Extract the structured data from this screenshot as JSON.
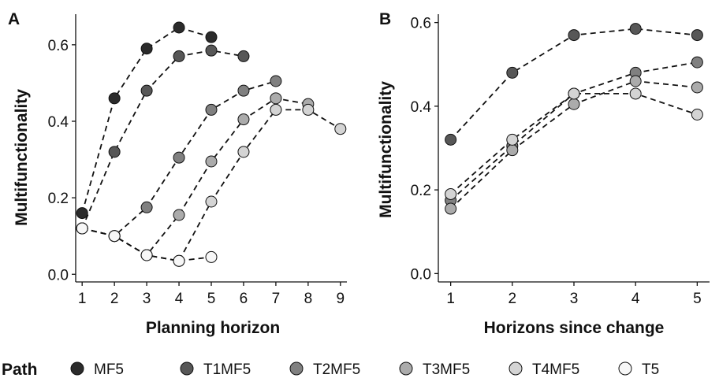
{
  "legend": {
    "title": "Path",
    "position": "bottom"
  },
  "series_colors": {
    "MF5": "#2b2b2b",
    "T1MF5": "#575757",
    "T2MF5": "#808080",
    "T3MF5": "#ababab",
    "T4MF5": "#d4d4d4",
    "T5": "#f7f7f7"
  },
  "chart_data": [
    {
      "panel": "A",
      "type": "line",
      "xlabel": "Planning horizon",
      "ylabel": "Multifunctionality",
      "xlim": [
        0.8,
        9.2
      ],
      "ylim": [
        -0.02,
        0.68
      ],
      "xticks": [
        1,
        2,
        3,
        4,
        5,
        6,
        7,
        8,
        9
      ],
      "yticks": [
        0.0,
        0.2,
        0.4,
        0.6
      ],
      "ytick_labels": [
        "0.0",
        "0.2",
        "0.4",
        "0.6"
      ],
      "grid": false,
      "series": [
        {
          "name": "MF5",
          "x": [
            1,
            2,
            3,
            4,
            5
          ],
          "y": [
            0.16,
            0.46,
            0.59,
            0.645,
            0.62
          ]
        },
        {
          "name": "T1MF5",
          "x": [
            1,
            2,
            3,
            4,
            5,
            6
          ],
          "y": [
            0.12,
            0.32,
            0.48,
            0.57,
            0.585,
            0.57
          ]
        },
        {
          "name": "T2MF5",
          "x": [
            1,
            2,
            3,
            4,
            5,
            6,
            7
          ],
          "y": [
            0.12,
            0.1,
            0.175,
            0.305,
            0.43,
            0.48,
            0.505
          ]
        },
        {
          "name": "T3MF5",
          "x": [
            1,
            2,
            3,
            4,
            5,
            6,
            7,
            8
          ],
          "y": [
            0.12,
            0.1,
            0.05,
            0.155,
            0.295,
            0.405,
            0.46,
            0.445
          ]
        },
        {
          "name": "T4MF5",
          "x": [
            1,
            2,
            3,
            4,
            5,
            6,
            7,
            8,
            9
          ],
          "y": [
            0.12,
            0.1,
            0.05,
            0.035,
            0.19,
            0.32,
            0.43,
            0.43,
            0.38
          ]
        },
        {
          "name": "T5",
          "x": [
            1,
            2,
            3,
            4,
            5
          ],
          "y": [
            0.12,
            0.1,
            0.05,
            0.035,
            0.045
          ]
        }
      ]
    },
    {
      "panel": "B",
      "type": "line",
      "xlabel": "Horizons since change",
      "ylabel": "Multifunctionality",
      "xlim": [
        0.8,
        5.2
      ],
      "ylim": [
        -0.02,
        0.62
      ],
      "xticks": [
        1,
        2,
        3,
        4,
        5
      ],
      "yticks": [
        0.0,
        0.2,
        0.4,
        0.6
      ],
      "ytick_labels": [
        "0.0",
        "0.2",
        "0.4",
        "0.6"
      ],
      "grid": false,
      "series": [
        {
          "name": "T1MF5",
          "x": [
            1,
            2,
            3,
            4,
            5
          ],
          "y": [
            0.32,
            0.48,
            0.57,
            0.585,
            0.57
          ]
        },
        {
          "name": "T2MF5",
          "x": [
            1,
            2,
            3,
            4,
            5
          ],
          "y": [
            0.175,
            0.305,
            0.43,
            0.48,
            0.505
          ]
        },
        {
          "name": "T3MF5",
          "x": [
            1,
            2,
            3,
            4,
            5
          ],
          "y": [
            0.155,
            0.295,
            0.405,
            0.46,
            0.445
          ]
        },
        {
          "name": "T4MF5",
          "x": [
            1,
            2,
            3,
            4,
            5
          ],
          "y": [
            0.19,
            0.32,
            0.43,
            0.43,
            0.38
          ]
        }
      ]
    }
  ]
}
